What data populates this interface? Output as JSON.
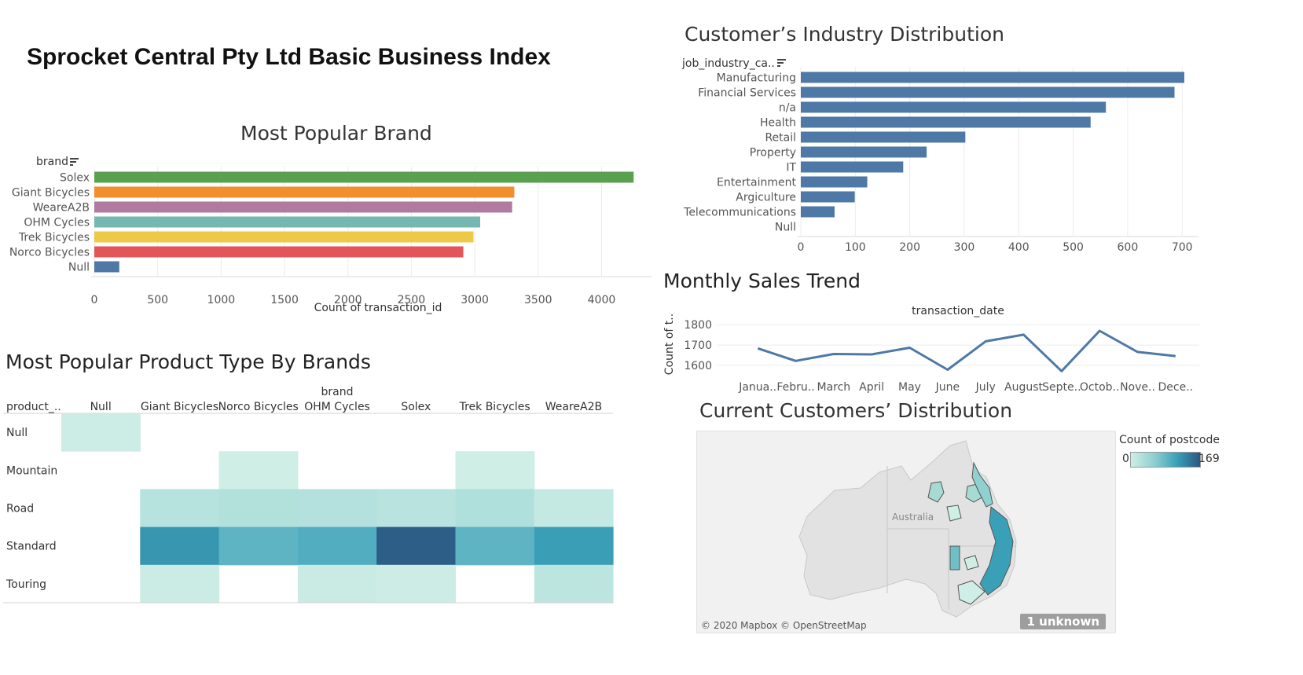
{
  "dashboard": {
    "title": "Sprocket Central Pty Ltd Basic Business Index"
  },
  "chart_data": [
    {
      "id": "brand",
      "type": "bar",
      "orientation": "horizontal",
      "title": "Most Popular Brand",
      "dimension_label": "brand",
      "xlabel": "Count of transaction_id",
      "ylabel": "brand",
      "categories": [
        "Solex",
        "Giant Bicycles",
        "WeareA2B",
        "OHM Cycles",
        "Trek Bicycles",
        "Norco Bicycles",
        "Null"
      ],
      "values": [
        4253,
        3312,
        3295,
        3043,
        2990,
        2910,
        197
      ],
      "colors": [
        "#59a14f",
        "#f28e2b",
        "#b07aa1",
        "#76b7b2",
        "#edc948",
        "#e15759",
        "#4e79a7"
      ],
      "xlim": [
        0,
        4400
      ],
      "ticks": [
        0,
        500,
        1000,
        1500,
        2000,
        2500,
        3000,
        3500,
        4000
      ],
      "grid": true
    },
    {
      "id": "industry",
      "type": "bar",
      "orientation": "horizontal",
      "title": "Customer’s Industry Distribution",
      "dimension_label": "job_industry_ca..",
      "categories": [
        "Manufacturing",
        "Financial Services",
        "n/a",
        "Health",
        "Retail",
        "Property",
        "IT",
        "Entertainment",
        "Argiculture",
        "Telecommunications",
        "Null"
      ],
      "values": [
        704,
        686,
        560,
        532,
        302,
        231,
        188,
        122,
        99,
        62,
        0
      ],
      "color": "#4e79a7",
      "xlim": [
        0,
        730
      ],
      "ticks": [
        0,
        100,
        200,
        300,
        400,
        500,
        600,
        700
      ],
      "grid": true
    },
    {
      "id": "monthly",
      "type": "line",
      "title": "Monthly Sales Trend",
      "xlabel": "transaction_date",
      "ylabel": "Count of t..",
      "x": [
        "Janua..",
        "Febru..",
        "March",
        "April",
        "May",
        "June",
        "July",
        "August",
        "Septe..",
        "Octob..",
        "Nove..",
        "Dece.."
      ],
      "values": [
        1684,
        1622,
        1656,
        1654,
        1687,
        1579,
        1718,
        1751,
        1572,
        1770,
        1666,
        1646
      ],
      "ylim": [
        1550,
        1820
      ],
      "ticks": [
        1600,
        1700,
        1800
      ],
      "color": "#4e79a7",
      "grid": true
    },
    {
      "id": "product",
      "type": "heatmap",
      "title": "Most Popular Product Type By Brands",
      "col_group_label": "brand",
      "row_label": "product_..",
      "columns": [
        "Null",
        "Giant Bicycles",
        "Norco Bicycles",
        "OHM Cycles",
        "Solex",
        "Trek Bicycles",
        "WeareA2B"
      ],
      "rows": [
        "Null",
        "Mountain",
        "Road",
        "Standard",
        "Touring"
      ],
      "values": [
        [
          197,
          null,
          null,
          null,
          null,
          null,
          null
        ],
        [
          null,
          null,
          160,
          null,
          null,
          165,
          null
        ],
        [
          null,
          520,
          590,
          560,
          500,
          620,
          320
        ],
        [
          null,
          2250,
          1700,
          1850,
          3000,
          1700,
          2150
        ],
        [
          null,
          230,
          null,
          240,
          200,
          null,
          430
        ]
      ],
      "color_min": 150,
      "color_max": 3100
    }
  ],
  "map": {
    "title": "Current Customers’ Distribution",
    "country_label": "Australia",
    "legend_title": "Count of postcode",
    "legend_min": "0",
    "legend_max": "169",
    "badge": "1 unknown",
    "credit": "© 2020 Mapbox © OpenStreetMap"
  },
  "icons": {
    "sort": "sort-icon"
  }
}
